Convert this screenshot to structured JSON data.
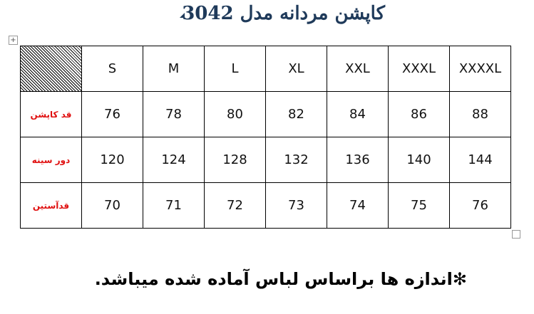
{
  "title": "کاپشن مردانه مدل 3042",
  "table": {
    "sizes": [
      "S",
      "M",
      "L",
      "XL",
      "XXL",
      "XXXL",
      "XXXXL"
    ],
    "rows": [
      {
        "label": "قد کاپشن",
        "values": [
          "76",
          "78",
          "80",
          "82",
          "84",
          "86",
          "88"
        ]
      },
      {
        "label": "دور سینه",
        "values": [
          "120",
          "124",
          "128",
          "132",
          "136",
          "140",
          "144"
        ]
      },
      {
        "label": "قدآستین",
        "values": [
          "70",
          "71",
          "72",
          "73",
          "74",
          "75",
          "76"
        ]
      }
    ]
  },
  "footer": "✻اندازه ها براساس لباس آماده شده میباشد.",
  "colors": {
    "title": "#1f3a5a",
    "row_label": "#e01010"
  },
  "icons": {
    "move_handle": "table-move-icon",
    "resize_handle": "table-resize-icon"
  }
}
